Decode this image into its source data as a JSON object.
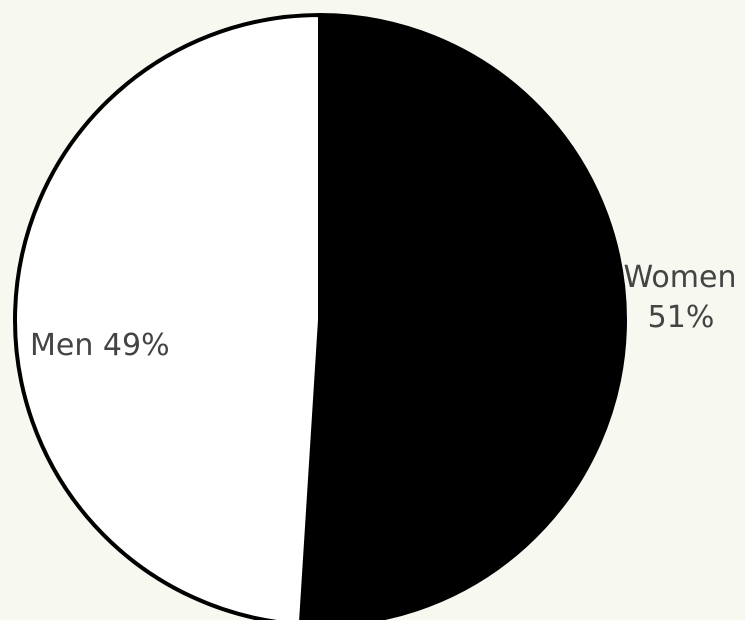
{
  "chart_data": {
    "type": "pie",
    "title": "",
    "categories": [
      "Women",
      "Men"
    ],
    "values": [
      51,
      49
    ],
    "labels": [
      {
        "lines": [
          "Women",
          "51%"
        ]
      },
      {
        "lines": [
          "Men 49%"
        ]
      }
    ],
    "colors": [
      "#000000",
      "#ffffff"
    ],
    "start_angle_deg": 0,
    "direction": "clockwise",
    "legend": "none"
  }
}
